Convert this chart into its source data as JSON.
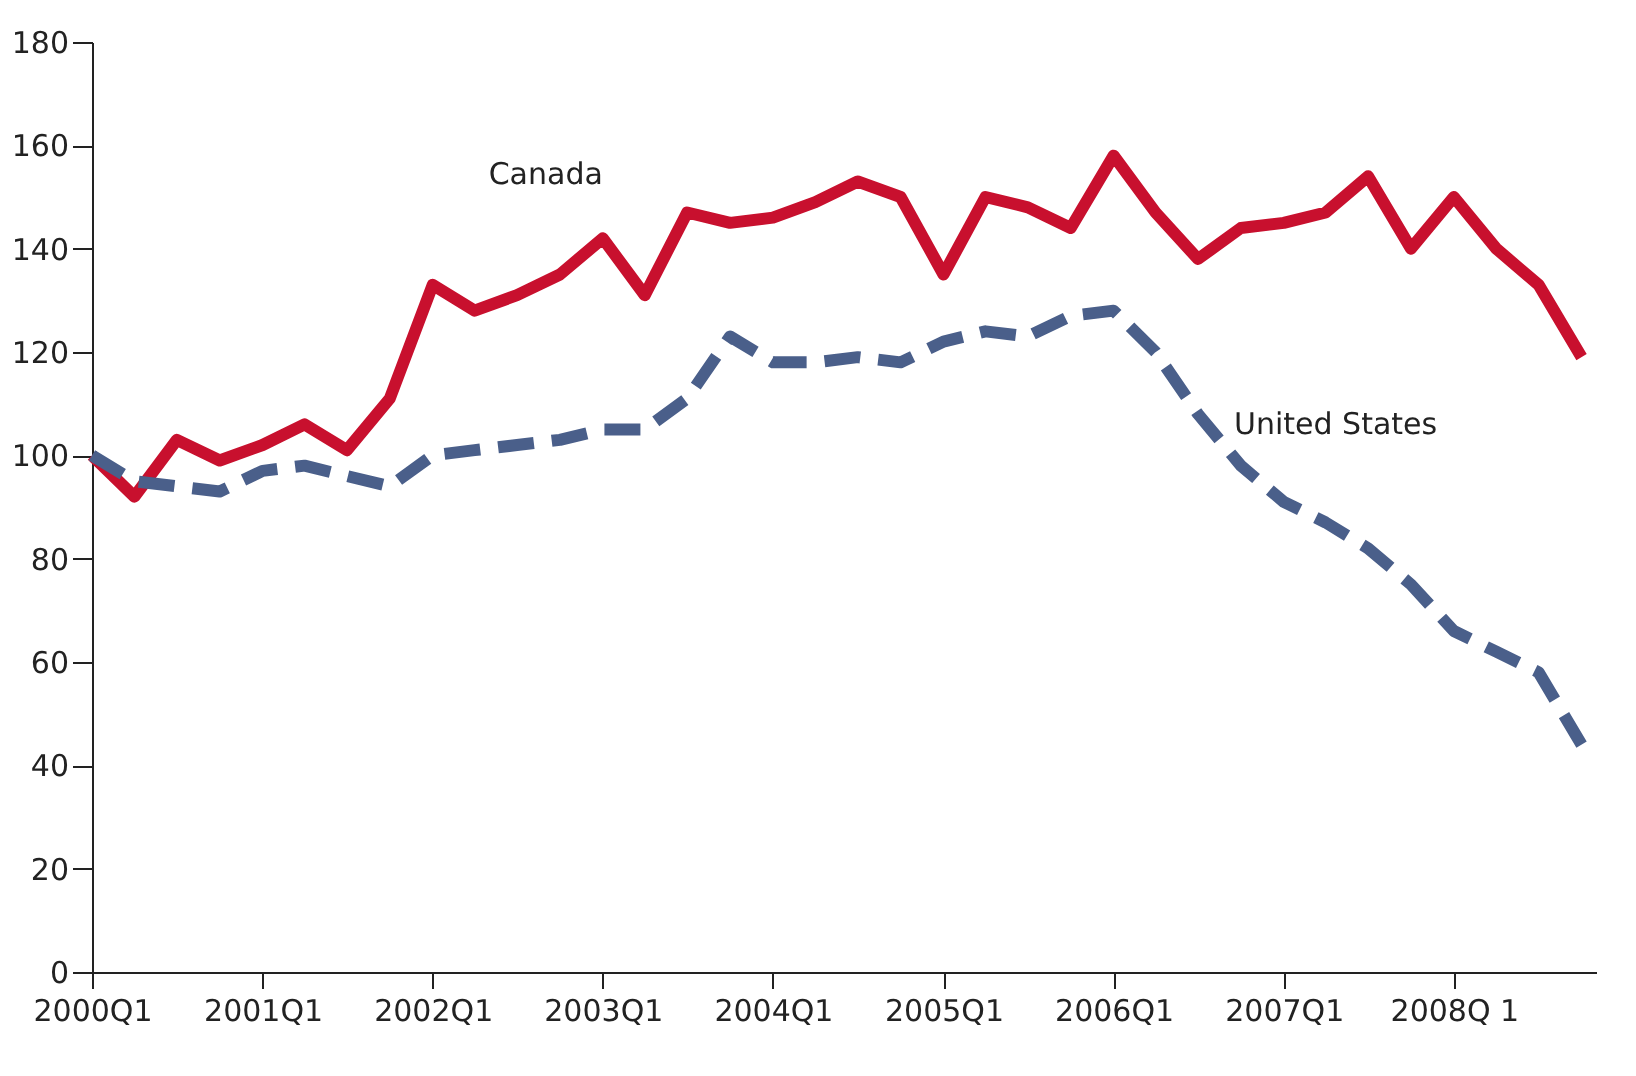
{
  "chart_data": {
    "type": "line",
    "x": [
      "2000-01",
      "2000-04",
      "2000-07",
      "2000-10",
      "2001-01",
      "2001-04",
      "2001-07",
      "2001-10",
      "2002-01",
      "2002-04",
      "2002-07",
      "2002-10",
      "2003-01",
      "2003-04",
      "2003-07",
      "2003-10",
      "2004-01",
      "2004-04",
      "2004-07",
      "2004-10",
      "2005-01",
      "2005-04",
      "2005-07",
      "2005-10",
      "2006-01",
      "2006-04",
      "2006-07",
      "2006-10",
      "2007-01",
      "2007-04",
      "2007-07",
      "2007-10",
      "2008-01",
      "2008-04",
      "2008-07",
      "2008-10"
    ],
    "series": [
      {
        "name": "Canada",
        "color": "#c8102e",
        "line_style": "solid",
        "values": [
          100,
          92,
          103,
          99,
          102,
          106,
          101,
          111,
          133,
          128,
          131,
          135,
          142,
          131,
          147,
          145,
          146,
          149,
          153,
          150,
          135,
          150,
          148,
          144,
          158,
          147,
          138,
          144,
          145,
          147,
          154,
          140,
          150,
          140,
          133,
          119
        ]
      },
      {
        "name": "United States",
        "color": "#4a5f8a",
        "line_style": "dashed",
        "values": [
          100,
          95,
          94,
          93,
          97,
          98,
          96,
          94,
          100,
          101,
          102,
          103,
          105,
          105,
          111,
          123,
          118,
          118,
          119,
          118,
          122,
          124,
          123,
          127,
          128,
          120,
          108,
          98,
          91,
          87,
          82,
          75,
          66,
          62,
          58,
          44
        ]
      }
    ],
    "xlim": [
      "2000-01",
      "2008-11"
    ],
    "xticks": [
      {
        "value": "2000-01",
        "label": "2000Q1"
      },
      {
        "value": "2001-01",
        "label": "2001Q1"
      },
      {
        "value": "2002-01",
        "label": "2002Q1"
      },
      {
        "value": "2003-01",
        "label": "2003Q1"
      },
      {
        "value": "2004-01",
        "label": "2004Q1"
      },
      {
        "value": "2005-01",
        "label": "2005Q1"
      },
      {
        "value": "2006-01",
        "label": "2006Q1"
      },
      {
        "value": "2007-01",
        "label": "2007Q1"
      },
      {
        "value": "2008-01",
        "label": "2008Q 1"
      }
    ],
    "ylim": [
      0,
      180
    ],
    "yticks": [
      0,
      20,
      40,
      60,
      80,
      100,
      120,
      140,
      160,
      180
    ],
    "grid": false,
    "legend": false,
    "marker": "none"
  }
}
